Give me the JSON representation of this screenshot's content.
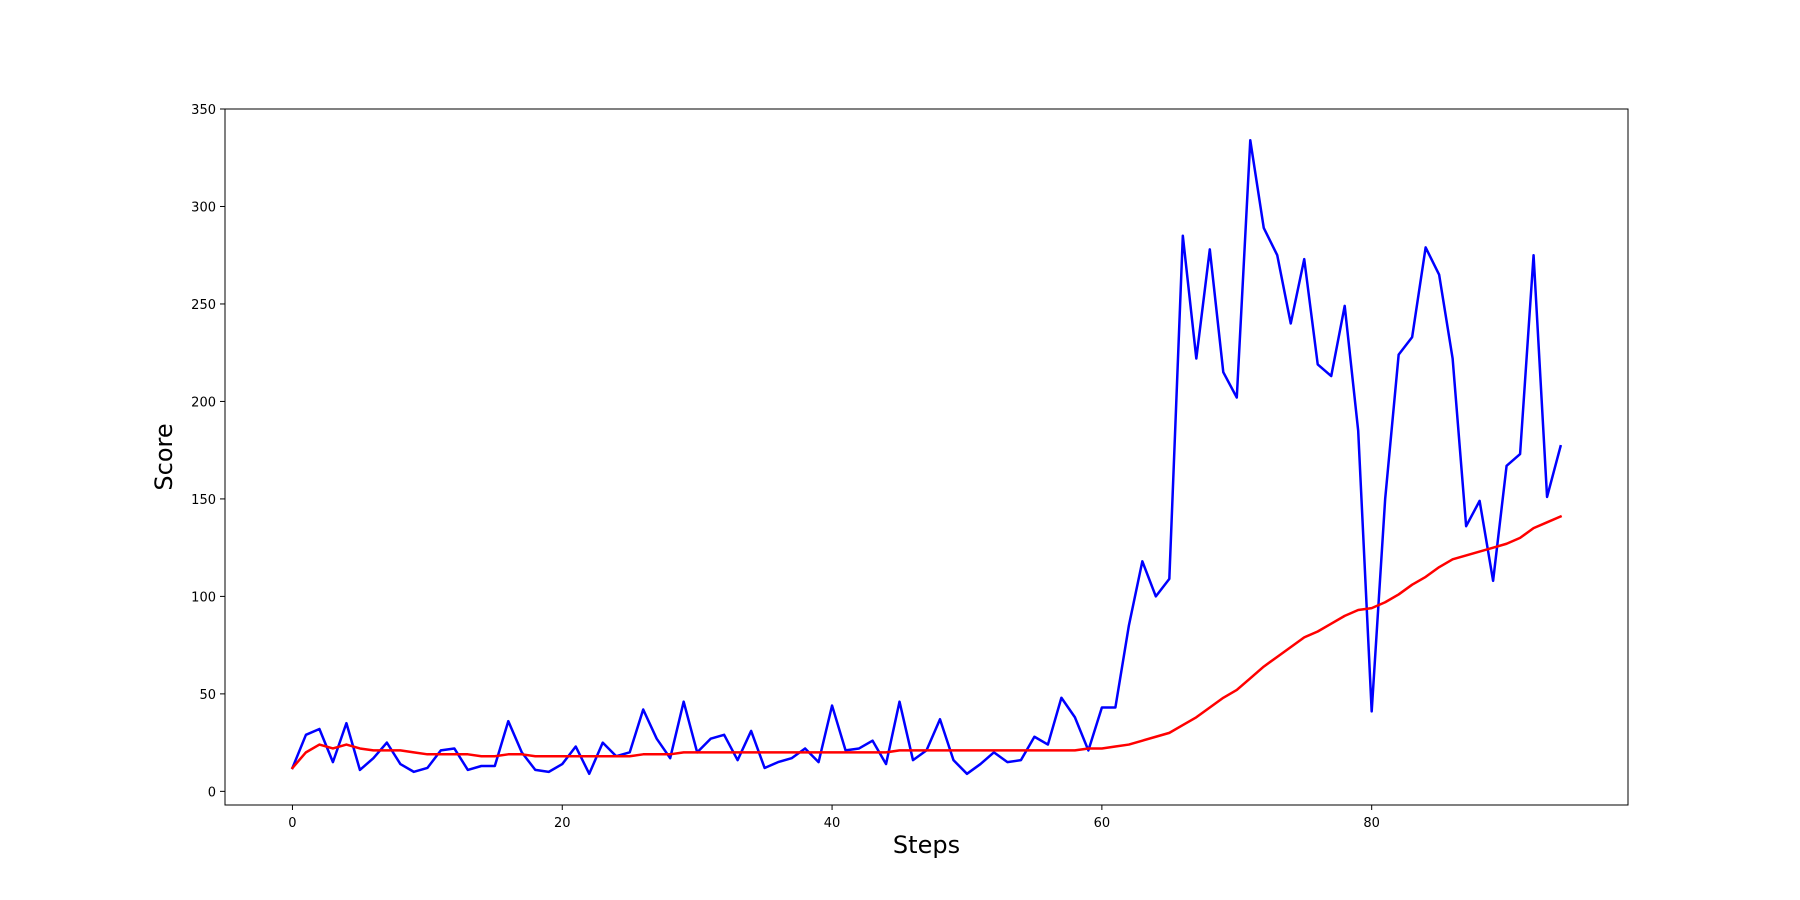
{
  "chart_data": {
    "type": "line",
    "title": "",
    "xlabel": "Steps",
    "ylabel": "Score",
    "xlim": [
      -5,
      99
    ],
    "ylim": [
      -7,
      350
    ],
    "xticks": [
      0,
      20,
      40,
      60,
      80
    ],
    "yticks": [
      0,
      50,
      100,
      150,
      200,
      250,
      300,
      350
    ],
    "grid": false,
    "legend": "none",
    "x": [
      0,
      1,
      2,
      3,
      4,
      5,
      6,
      7,
      8,
      9,
      10,
      11,
      12,
      13,
      14,
      15,
      16,
      17,
      18,
      19,
      20,
      21,
      22,
      23,
      24,
      25,
      26,
      27,
      28,
      29,
      30,
      31,
      32,
      33,
      34,
      35,
      36,
      37,
      38,
      39,
      40,
      41,
      42,
      43,
      44,
      45,
      46,
      47,
      48,
      49,
      50,
      51,
      52,
      53,
      54,
      55,
      56,
      57,
      58,
      59,
      60,
      61,
      62,
      63,
      64,
      65,
      66,
      67,
      68,
      69,
      70,
      71,
      72,
      73,
      74,
      75,
      76,
      77,
      78,
      79,
      80,
      81,
      82,
      83,
      84,
      85,
      86,
      87,
      88,
      89,
      90,
      91,
      92,
      93,
      94
    ],
    "series": [
      {
        "color": "#0000ff",
        "values": [
          12,
          29,
          32,
          15,
          35,
          11,
          17,
          25,
          14,
          10,
          12,
          21,
          22,
          11,
          13,
          13,
          36,
          20,
          11,
          10,
          14,
          23,
          9,
          25,
          18,
          20,
          42,
          27,
          17,
          46,
          20,
          27,
          29,
          16,
          31,
          12,
          15,
          17,
          22,
          15,
          44,
          21,
          22,
          26,
          14,
          46,
          16,
          21,
          37,
          16,
          9,
          14,
          20,
          15,
          16,
          28,
          24,
          48,
          38,
          21,
          43,
          43,
          85,
          118,
          100,
          109,
          285,
          222,
          278,
          215,
          202,
          334,
          289,
          275,
          240,
          273,
          219,
          213,
          249,
          185,
          41,
          150,
          224,
          233,
          279,
          265,
          222,
          136,
          149,
          108,
          167,
          173,
          275,
          151,
          177
        ]
      },
      {
        "color": "#ff0000",
        "values": [
          12,
          20,
          24,
          22,
          24,
          22,
          21,
          21,
          21,
          20,
          19,
          19,
          19,
          19,
          18,
          18,
          19,
          19,
          18,
          18,
          18,
          18,
          18,
          18,
          18,
          18,
          19,
          19,
          19,
          20,
          20,
          20,
          20,
          20,
          20,
          20,
          20,
          20,
          20,
          20,
          20,
          20,
          20,
          20,
          20,
          21,
          21,
          21,
          21,
          21,
          21,
          21,
          21,
          21,
          21,
          21,
          21,
          21,
          21,
          22,
          22,
          23,
          24,
          26,
          28,
          30,
          34,
          38,
          43,
          48,
          52,
          58,
          64,
          69,
          74,
          79,
          82,
          86,
          90,
          93,
          94,
          97,
          101,
          106,
          110,
          115,
          119,
          121,
          123,
          125,
          127,
          130,
          135,
          138,
          141
        ]
      }
    ]
  }
}
